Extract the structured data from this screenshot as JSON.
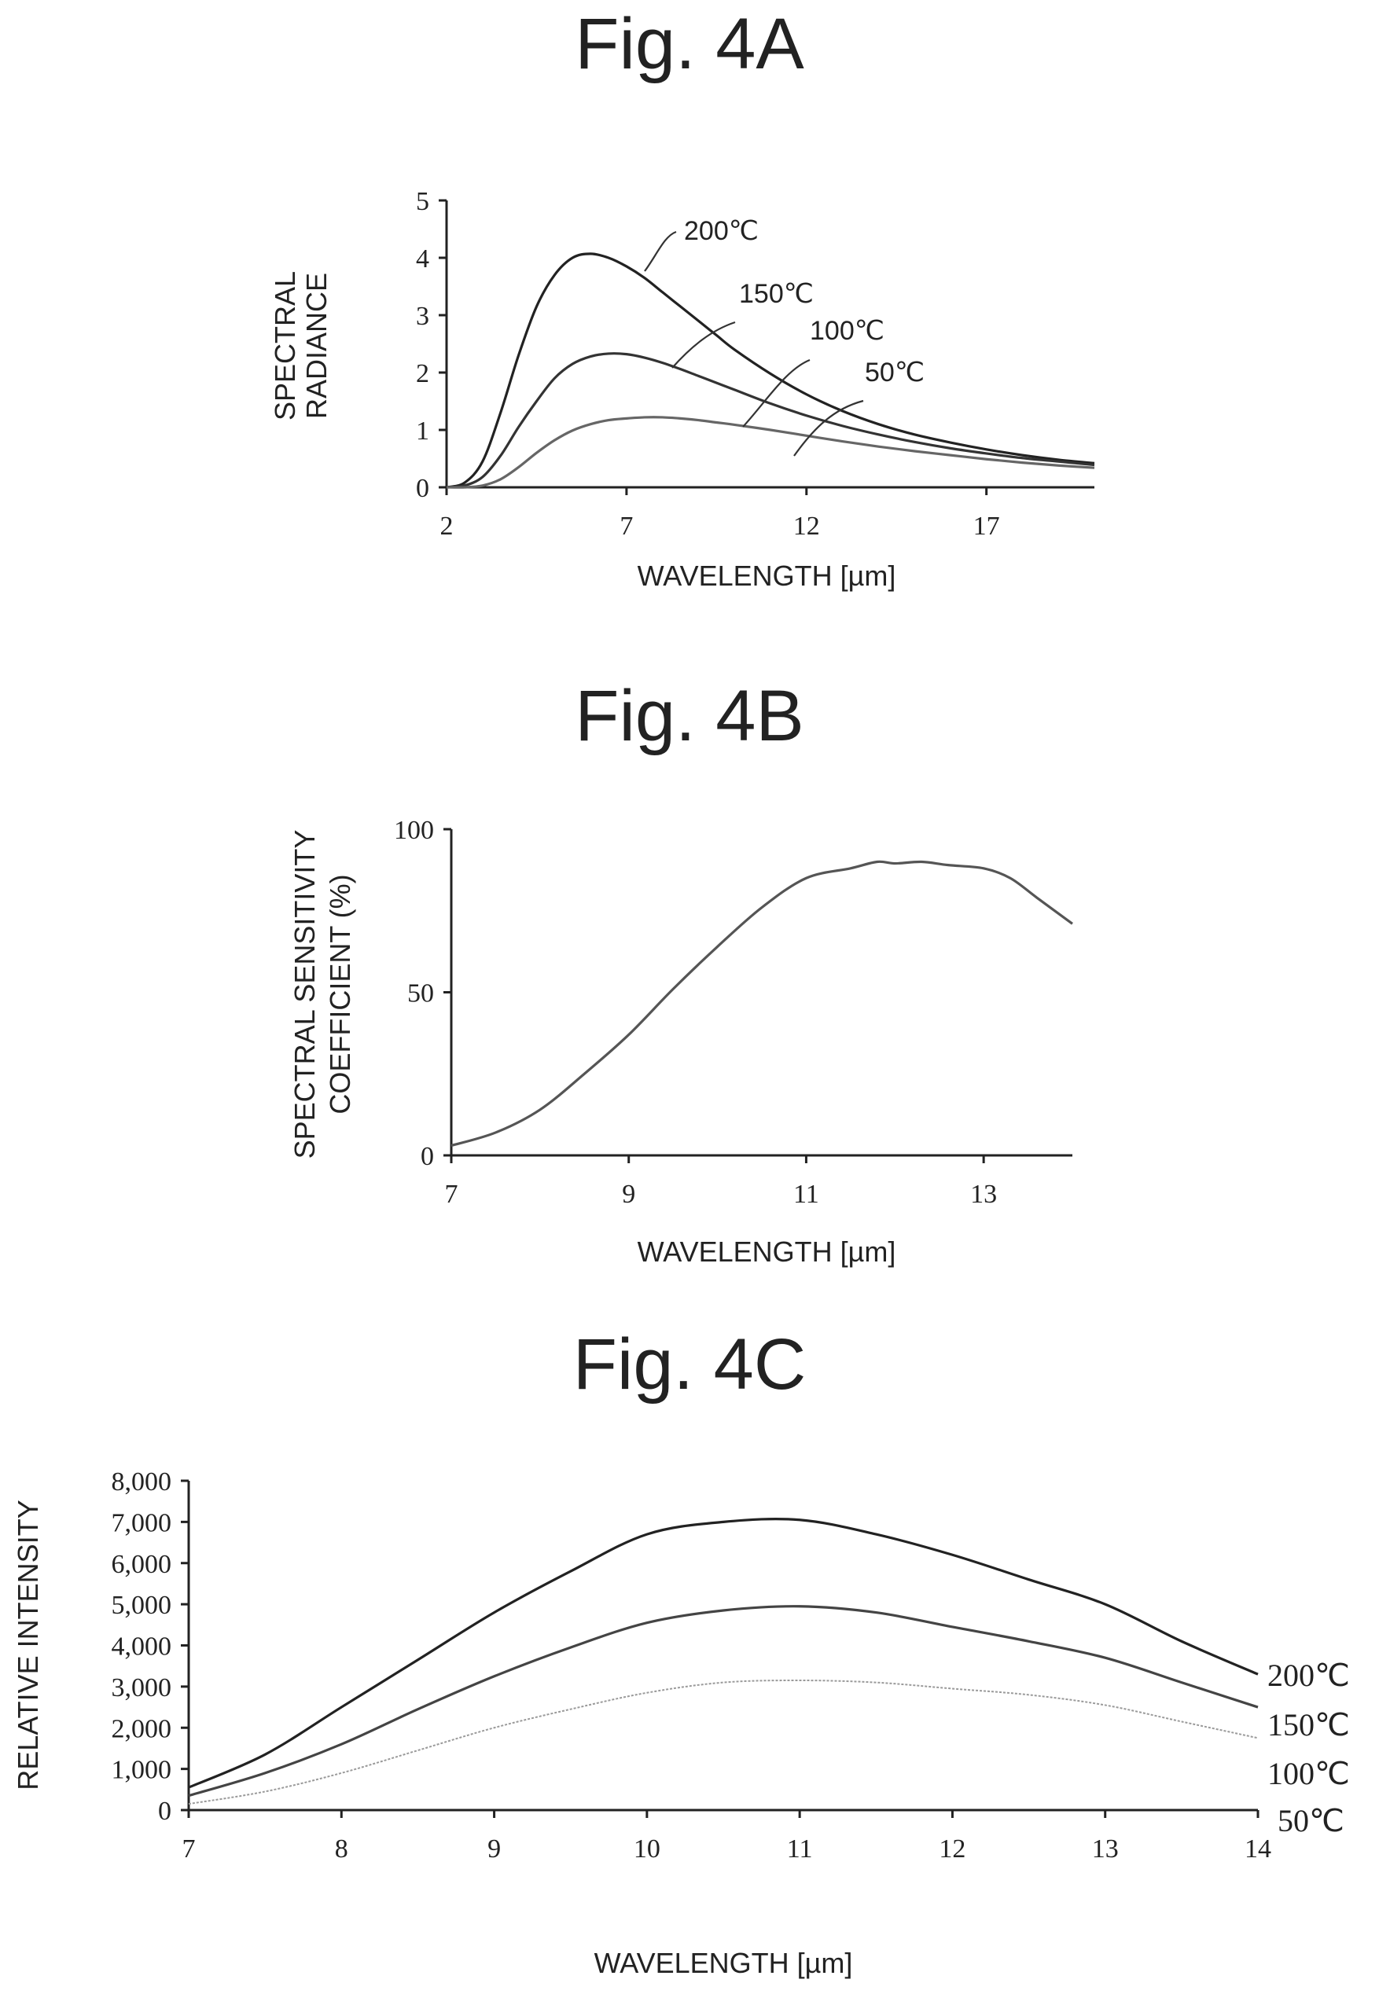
{
  "figures": {
    "a": {
      "title": "Fig. 4A"
    },
    "b": {
      "title": "Fig. 4B"
    },
    "c": {
      "title": "Fig. 4C"
    }
  },
  "chart_data": [
    {
      "id": "a",
      "type": "line",
      "title": "Fig. 4A",
      "xlabel": "WAVELENGTH [µm]",
      "ylabel": [
        "SPECTRAL",
        "RADIANCE"
      ],
      "xlim": [
        2,
        20
      ],
      "ylim": [
        0,
        5
      ],
      "xticks": [
        2,
        7,
        12,
        17
      ],
      "yticks": [
        0,
        1,
        2,
        3,
        4,
        5
      ],
      "grid": false,
      "series": [
        {
          "name": "200℃",
          "color": "#222222",
          "x": [
            2,
            2.5,
            3,
            3.5,
            4,
            4.5,
            5,
            5.5,
            6,
            6.5,
            7,
            7.5,
            8,
            8.5,
            9,
            9.5,
            10,
            11,
            12,
            13,
            14,
            15,
            16,
            17,
            18,
            19,
            20
          ],
          "y": [
            0,
            0.08,
            0.45,
            1.3,
            2.3,
            3.15,
            3.7,
            4.0,
            4.07,
            4.0,
            3.85,
            3.65,
            3.4,
            3.15,
            2.9,
            2.65,
            2.4,
            1.98,
            1.62,
            1.33,
            1.1,
            0.92,
            0.78,
            0.66,
            0.56,
            0.48,
            0.42
          ]
        },
        {
          "name": "150℃",
          "color": "#333333",
          "x": [
            2,
            2.5,
            3,
            3.5,
            4,
            4.5,
            5,
            5.5,
            6,
            6.5,
            7,
            7.5,
            8,
            8.5,
            9,
            9.5,
            10,
            11,
            12,
            13,
            14,
            15,
            16,
            17,
            18,
            19,
            20
          ],
          "y": [
            0,
            0.03,
            0.18,
            0.55,
            1.05,
            1.5,
            1.9,
            2.15,
            2.28,
            2.33,
            2.32,
            2.26,
            2.17,
            2.06,
            1.94,
            1.82,
            1.7,
            1.46,
            1.25,
            1.07,
            0.92,
            0.79,
            0.68,
            0.59,
            0.51,
            0.45,
            0.39
          ]
        },
        {
          "name": "100℃",
          "color": "#666666",
          "x": [
            2,
            2.5,
            3,
            3.5,
            4,
            4.5,
            5,
            5.5,
            6,
            6.5,
            7,
            7.5,
            8,
            8.5,
            9,
            9.5,
            10,
            11,
            12,
            13,
            14,
            15,
            16,
            17,
            18,
            19,
            20
          ],
          "y": [
            0,
            0,
            0.03,
            0.14,
            0.35,
            0.6,
            0.82,
            0.99,
            1.1,
            1.17,
            1.2,
            1.22,
            1.22,
            1.2,
            1.17,
            1.13,
            1.09,
            1.0,
            0.9,
            0.8,
            0.71,
            0.63,
            0.56,
            0.49,
            0.43,
            0.38,
            0.34
          ]
        }
      ],
      "annotations": [
        "200℃",
        "150℃",
        "100℃",
        "50℃"
      ]
    },
    {
      "id": "b",
      "type": "line",
      "title": "Fig. 4B",
      "xlabel": "WAVELENGTH [µm]",
      "ylabel": [
        "SPECTRAL SENSITIVITY",
        "COEFFICIENT (%)"
      ],
      "xlim": [
        7,
        14
      ],
      "ylim": [
        0,
        100
      ],
      "xticks": [
        7,
        9,
        11,
        13
      ],
      "yticks": [
        0,
        50,
        100
      ],
      "grid": false,
      "series": [
        {
          "color": "#555555",
          "x": [
            7,
            7.5,
            8,
            8.5,
            9,
            9.5,
            10,
            10.5,
            11,
            11.5,
            11.8,
            12,
            12.3,
            12.6,
            13,
            13.3,
            13.6,
            14
          ],
          "y": [
            3,
            7,
            14,
            25,
            37,
            51,
            64,
            76,
            85,
            88,
            90,
            89.5,
            90,
            89,
            88,
            85,
            79,
            71
          ]
        }
      ]
    },
    {
      "id": "c",
      "type": "line",
      "title": "Fig. 4C",
      "xlabel": "WAVELENGTH [µm]",
      "ylabel": "RELATIVE INTENSITY",
      "xlim": [
        7,
        14
      ],
      "ylim": [
        0,
        8000
      ],
      "xticks": [
        7,
        8,
        9,
        10,
        11,
        12,
        13,
        14
      ],
      "yticks": [
        0,
        1000,
        2000,
        3000,
        4000,
        5000,
        6000,
        7000,
        8000
      ],
      "ytick_labels": [
        "0",
        "1,000",
        "2,000",
        "3,000",
        "4,000",
        "5,000",
        "6,000",
        "7,000",
        "8,000"
      ],
      "grid": false,
      "series": [
        {
          "name": "200℃",
          "color": "#222222",
          "x": [
            7,
            7.5,
            8,
            8.5,
            9,
            9.5,
            10,
            10.5,
            11,
            11.5,
            12,
            12.5,
            13,
            13.5,
            14
          ],
          "y": [
            550,
            1350,
            2500,
            3650,
            4800,
            5800,
            6700,
            7000,
            7050,
            6700,
            6200,
            5600,
            5000,
            4100,
            3300
          ]
        },
        {
          "name": "150℃",
          "color": "#444444",
          "x": [
            7,
            7.5,
            8,
            8.5,
            9,
            9.5,
            10,
            10.5,
            11,
            11.5,
            12,
            12.5,
            13,
            13.5,
            14
          ],
          "y": [
            350,
            900,
            1600,
            2450,
            3250,
            3950,
            4550,
            4850,
            4950,
            4800,
            4450,
            4100,
            3700,
            3100,
            2500
          ]
        },
        {
          "name": "100℃",
          "color": "#9a9a9a",
          "x": [
            7,
            7.5,
            8,
            8.5,
            9,
            9.5,
            10,
            10.5,
            11,
            11.5,
            12,
            12.5,
            13,
            13.5,
            14
          ],
          "y": [
            150,
            450,
            900,
            1450,
            2000,
            2450,
            2850,
            3100,
            3150,
            3100,
            2950,
            2800,
            2550,
            2150,
            1750
          ]
        }
      ],
      "legend_labels": [
        "200℃",
        "150℃",
        "100℃",
        "50℃"
      ],
      "legend": "right"
    }
  ]
}
